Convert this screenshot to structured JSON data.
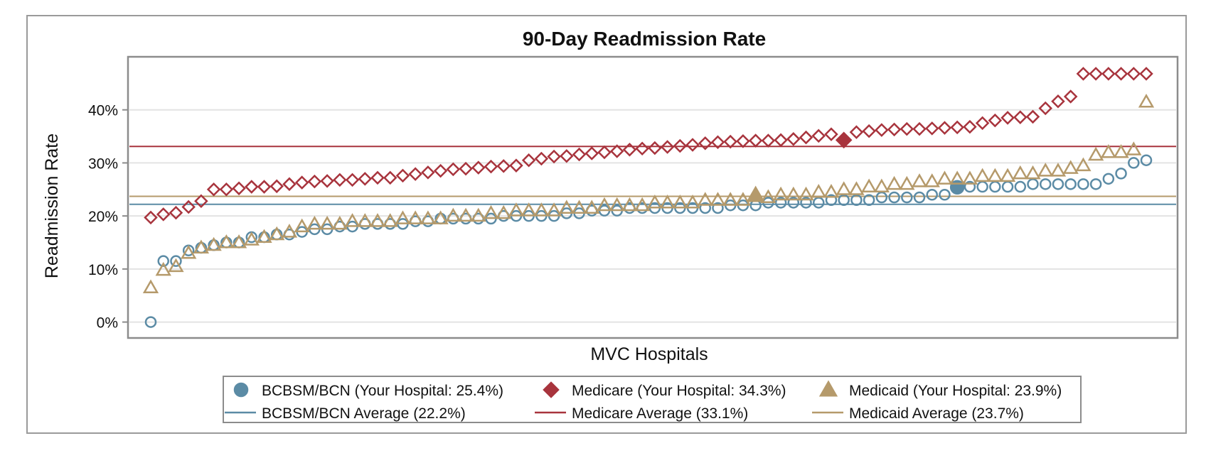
{
  "chart_data": {
    "type": "scatter",
    "title": "90-Day Readmission Rate",
    "xlabel": "MVC Hospitals",
    "ylabel": "Readmission Rate",
    "y_ticks": [
      "0%",
      "10%",
      "20%",
      "30%",
      "40%"
    ],
    "y_tick_values": [
      0,
      10,
      20,
      30,
      40
    ],
    "ylim": [
      -3,
      50
    ],
    "x_count": 80,
    "grid": "horizontal",
    "legend_position": "bottom",
    "series": [
      {
        "name": "BCBSM/BCN",
        "color": "#5B8BA5",
        "marker": "circle",
        "highlight_index": 64,
        "values": [
          0,
          11.5,
          11.5,
          13.5,
          14,
          14.5,
          15,
          15,
          16,
          16,
          16.5,
          16.5,
          17,
          17.5,
          17.5,
          18,
          18,
          18.5,
          18.5,
          18.5,
          18.5,
          19,
          19,
          19.5,
          19.5,
          19.5,
          19.5,
          19.5,
          20,
          20,
          20,
          20,
          20,
          20.5,
          20.5,
          21,
          21,
          21,
          21.5,
          21.5,
          21.5,
          21.5,
          21.5,
          21.5,
          21.5,
          21.5,
          22,
          22,
          22,
          22.5,
          22.5,
          22.5,
          22.5,
          22.5,
          23,
          23,
          23,
          23,
          23.5,
          23.5,
          23.5,
          23.5,
          24,
          24,
          25.4,
          25.5,
          25.5,
          25.5,
          25.5,
          25.5,
          26,
          26,
          26,
          26,
          26,
          26,
          27,
          28,
          30,
          30.5
        ]
      },
      {
        "name": "Medicare",
        "color": "#A8343D",
        "marker": "diamond",
        "highlight_index": 55,
        "values": [
          19.7,
          20.3,
          20.6,
          21.7,
          22.8,
          25,
          25,
          25.2,
          25.5,
          25.5,
          25.6,
          26,
          26.3,
          26.5,
          26.6,
          26.8,
          26.8,
          27,
          27.2,
          27.2,
          27.6,
          27.9,
          28.2,
          28.5,
          28.8,
          28.9,
          29.1,
          29.3,
          29.4,
          29.5,
          30.5,
          30.8,
          31.2,
          31.3,
          31.6,
          31.8,
          32,
          32.2,
          32.5,
          32.7,
          32.8,
          33,
          33.2,
          33.4,
          33.7,
          33.9,
          34,
          34.1,
          34.2,
          34.2,
          34.3,
          34.5,
          34.8,
          35.1,
          35.4,
          34.3,
          35.8,
          36,
          36.2,
          36.3,
          36.4,
          36.4,
          36.5,
          36.6,
          36.7,
          36.8,
          37.5,
          38,
          38.5,
          38.6,
          38.7,
          40.3,
          41.6,
          42.5,
          46.8,
          46.8,
          46.8,
          46.8,
          46.8,
          46.8
        ]
      },
      {
        "name": "Medicaid",
        "color": "#B59A6B",
        "marker": "triangle",
        "highlight_index": 48,
        "values": [
          6.5,
          9.8,
          10.5,
          13,
          14,
          14.5,
          15,
          15,
          15.5,
          16,
          16.5,
          17,
          18,
          18.5,
          18.5,
          18.5,
          19,
          19,
          19,
          19,
          19.5,
          19.5,
          19.5,
          19.5,
          20,
          20,
          20,
          20.5,
          20.5,
          21,
          21,
          21,
          21,
          21.5,
          21.5,
          21.5,
          22,
          22,
          22,
          22,
          22.5,
          22.5,
          22.5,
          22.5,
          23,
          23,
          23,
          23,
          23.9,
          23.5,
          24,
          24,
          24,
          24.5,
          24.5,
          25,
          25,
          25.5,
          25.5,
          26,
          26,
          26.5,
          26.5,
          27,
          27,
          27,
          27.5,
          27.5,
          27.5,
          28,
          28,
          28.5,
          28.5,
          29,
          29.5,
          31.5,
          32,
          32,
          32.5,
          41.5
        ]
      }
    ],
    "averages": [
      {
        "name": "BCBSM/BCN Average",
        "value": 22.2,
        "color": "#5B8BA5"
      },
      {
        "name": "Medicare Average",
        "value": 33.1,
        "color": "#A8343D"
      },
      {
        "name": "Medicaid Average",
        "value": 23.7,
        "color": "#B59A6B"
      }
    ],
    "legend": {
      "markers": [
        {
          "label": "BCBSM/BCN (Your Hospital: 25.4%)",
          "marker": "circle",
          "color": "#5B8BA5"
        },
        {
          "label": "Medicare (Your Hospital: 34.3%)",
          "marker": "diamond",
          "color": "#A8343D"
        },
        {
          "label": "Medicaid (Your Hospital: 23.9%)",
          "marker": "triangle",
          "color": "#B59A6B"
        }
      ],
      "lines": [
        {
          "label": "BCBSM/BCN Average (22.2%)",
          "color": "#5B8BA5"
        },
        {
          "label": "Medicare Average (33.1%)",
          "color": "#A8343D"
        },
        {
          "label": "Medicaid Average (23.7%)",
          "color": "#B59A6B"
        }
      ]
    }
  }
}
